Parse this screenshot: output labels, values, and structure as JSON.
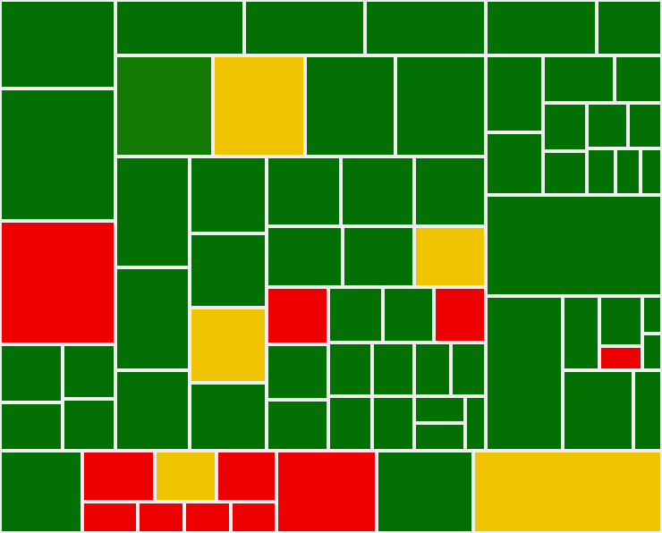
{
  "chart_data": {
    "type": "treemap",
    "title": "",
    "colors": {
      "green": "#037003",
      "dark_green": "#137a03",
      "yellow": "#f0c400",
      "red": "#ef0000",
      "gap": "#efefef"
    },
    "tiles": [
      {
        "id": "a1",
        "c": "green",
        "r": [
          0,
          0,
          129,
          99
        ]
      },
      {
        "id": "a2",
        "c": "green",
        "r": [
          0,
          99,
          129,
          247
        ]
      },
      {
        "id": "a3",
        "c": "red",
        "r": [
          0,
          247,
          129,
          385
        ]
      },
      {
        "id": "a4",
        "c": "green",
        "r": [
          0,
          385,
          70,
          450
        ]
      },
      {
        "id": "a5",
        "c": "green",
        "r": [
          70,
          385,
          129,
          446
        ]
      },
      {
        "id": "a6",
        "c": "green",
        "r": [
          0,
          450,
          70,
          504
        ]
      },
      {
        "id": "a7",
        "c": "green",
        "r": [
          70,
          446,
          129,
          504
        ]
      },
      {
        "id": "b1",
        "c": "green",
        "r": [
          129,
          0,
          273,
          62
        ]
      },
      {
        "id": "b2",
        "c": "green",
        "r": [
          273,
          0,
          408,
          62
        ]
      },
      {
        "id": "b3",
        "c": "green",
        "r": [
          408,
          0,
          543,
          62
        ]
      },
      {
        "id": "b4",
        "c": "dark_green",
        "r": [
          129,
          62,
          238,
          175
        ]
      },
      {
        "id": "b5",
        "c": "yellow",
        "r": [
          238,
          62,
          341,
          175
        ]
      },
      {
        "id": "b6",
        "c": "green",
        "r": [
          341,
          62,
          442,
          175
        ]
      },
      {
        "id": "b7",
        "c": "green",
        "r": [
          442,
          62,
          543,
          175
        ]
      },
      {
        "id": "c1",
        "c": "green",
        "r": [
          129,
          175,
          212,
          299
        ]
      },
      {
        "id": "c2",
        "c": "green",
        "r": [
          129,
          299,
          212,
          414
        ]
      },
      {
        "id": "c3",
        "c": "green",
        "r": [
          129,
          414,
          212,
          504
        ]
      },
      {
        "id": "c4",
        "c": "green",
        "r": [
          212,
          175,
          298,
          261
        ]
      },
      {
        "id": "c5",
        "c": "green",
        "r": [
          212,
          261,
          298,
          344
        ]
      },
      {
        "id": "c6",
        "c": "yellow",
        "r": [
          212,
          344,
          298,
          428
        ]
      },
      {
        "id": "c7",
        "c": "green",
        "r": [
          212,
          428,
          298,
          504
        ]
      },
      {
        "id": "d1",
        "c": "green",
        "r": [
          298,
          175,
          381,
          253
        ]
      },
      {
        "id": "d2",
        "c": "green",
        "r": [
          381,
          175,
          463,
          253
        ]
      },
      {
        "id": "d3",
        "c": "green",
        "r": [
          463,
          175,
          543,
          253
        ]
      },
      {
        "id": "d4",
        "c": "green",
        "r": [
          298,
          253,
          383,
          321
        ]
      },
      {
        "id": "d5",
        "c": "green",
        "r": [
          383,
          253,
          463,
          321
        ]
      },
      {
        "id": "d6",
        "c": "yellow",
        "r": [
          463,
          253,
          543,
          321
        ]
      },
      {
        "id": "d7",
        "c": "red",
        "r": [
          298,
          321,
          367,
          385
        ]
      },
      {
        "id": "d8",
        "c": "green",
        "r": [
          367,
          321,
          428,
          383
        ]
      },
      {
        "id": "d9",
        "c": "green",
        "r": [
          428,
          321,
          485,
          383
        ]
      },
      {
        "id": "d10",
        "c": "red",
        "r": [
          485,
          321,
          543,
          383
        ]
      },
      {
        "id": "d11",
        "c": "green",
        "r": [
          298,
          385,
          367,
          447
        ]
      },
      {
        "id": "d12",
        "c": "green",
        "r": [
          298,
          447,
          367,
          504
        ]
      },
      {
        "id": "d13",
        "c": "green",
        "r": [
          367,
          383,
          416,
          443
        ]
      },
      {
        "id": "d14",
        "c": "green",
        "r": [
          416,
          383,
          463,
          443
        ]
      },
      {
        "id": "d15",
        "c": "green",
        "r": [
          463,
          383,
          504,
          443
        ]
      },
      {
        "id": "d16",
        "c": "green",
        "r": [
          504,
          383,
          543,
          443
        ]
      },
      {
        "id": "d17",
        "c": "green",
        "r": [
          367,
          443,
          416,
          504
        ]
      },
      {
        "id": "d18",
        "c": "green",
        "r": [
          416,
          443,
          463,
          504
        ]
      },
      {
        "id": "d19",
        "c": "green",
        "r": [
          463,
          443,
          520,
          473
        ]
      },
      {
        "id": "d20",
        "c": "green",
        "r": [
          463,
          473,
          520,
          504
        ]
      },
      {
        "id": "d21",
        "c": "green",
        "r": [
          520,
          443,
          543,
          504
        ]
      },
      {
        "id": "e1",
        "c": "green",
        "r": [
          543,
          0,
          667,
          62
        ]
      },
      {
        "id": "e2",
        "c": "green",
        "r": [
          667,
          0,
          740,
          62
        ]
      },
      {
        "id": "e3",
        "c": "green",
        "r": [
          543,
          62,
          607,
          148
        ]
      },
      {
        "id": "e4",
        "c": "green",
        "r": [
          543,
          148,
          607,
          218
        ]
      },
      {
        "id": "e5",
        "c": "green",
        "r": [
          607,
          62,
          687,
          115
        ]
      },
      {
        "id": "e6",
        "c": "green",
        "r": [
          687,
          62,
          740,
          115
        ]
      },
      {
        "id": "e7",
        "c": "green",
        "r": [
          607,
          115,
          656,
          169
        ]
      },
      {
        "id": "e8",
        "c": "green",
        "r": [
          656,
          115,
          702,
          166
        ]
      },
      {
        "id": "e9",
        "c": "green",
        "r": [
          702,
          115,
          740,
          166
        ]
      },
      {
        "id": "e10",
        "c": "green",
        "r": [
          607,
          169,
          656,
          218
        ]
      },
      {
        "id": "e11",
        "c": "green",
        "r": [
          656,
          166,
          688,
          218
        ]
      },
      {
        "id": "e12",
        "c": "green",
        "r": [
          688,
          166,
          716,
          218
        ]
      },
      {
        "id": "e13",
        "c": "green",
        "r": [
          716,
          166,
          740,
          218
        ]
      },
      {
        "id": "e14",
        "c": "green",
        "r": [
          543,
          218,
          740,
          331
        ]
      },
      {
        "id": "e15",
        "c": "green",
        "r": [
          543,
          331,
          629,
          504
        ]
      },
      {
        "id": "e16",
        "c": "green",
        "r": [
          629,
          331,
          670,
          414
        ]
      },
      {
        "id": "e17",
        "c": "green",
        "r": [
          670,
          331,
          718,
          387
        ]
      },
      {
        "id": "e18",
        "c": "red",
        "r": [
          670,
          387,
          718,
          414
        ]
      },
      {
        "id": "e19",
        "c": "green",
        "r": [
          718,
          331,
          740,
          373
        ]
      },
      {
        "id": "e20",
        "c": "green",
        "r": [
          718,
          373,
          740,
          414
        ]
      },
      {
        "id": "e21",
        "c": "green",
        "r": [
          629,
          414,
          708,
          504
        ]
      },
      {
        "id": "e22",
        "c": "green",
        "r": [
          708,
          414,
          740,
          504
        ]
      },
      {
        "id": "f1",
        "c": "green",
        "r": [
          0,
          504,
          92,
          596
        ]
      },
      {
        "id": "f2",
        "c": "red",
        "r": [
          92,
          504,
          173,
          561
        ]
      },
      {
        "id": "f3",
        "c": "yellow",
        "r": [
          173,
          504,
          242,
          561
        ]
      },
      {
        "id": "f4",
        "c": "red",
        "r": [
          242,
          504,
          309,
          561
        ]
      },
      {
        "id": "f5",
        "c": "red",
        "r": [
          92,
          561,
          154,
          596
        ]
      },
      {
        "id": "f6",
        "c": "red",
        "r": [
          154,
          561,
          206,
          596
        ]
      },
      {
        "id": "f7",
        "c": "red",
        "r": [
          206,
          561,
          258,
          596
        ]
      },
      {
        "id": "f8",
        "c": "red",
        "r": [
          258,
          561,
          309,
          596
        ]
      },
      {
        "id": "f9",
        "c": "red",
        "r": [
          309,
          504,
          421,
          596
        ]
      },
      {
        "id": "f10",
        "c": "green",
        "r": [
          421,
          504,
          529,
          596
        ]
      },
      {
        "id": "f11",
        "c": "yellow",
        "r": [
          529,
          504,
          740,
          596
        ]
      }
    ]
  }
}
